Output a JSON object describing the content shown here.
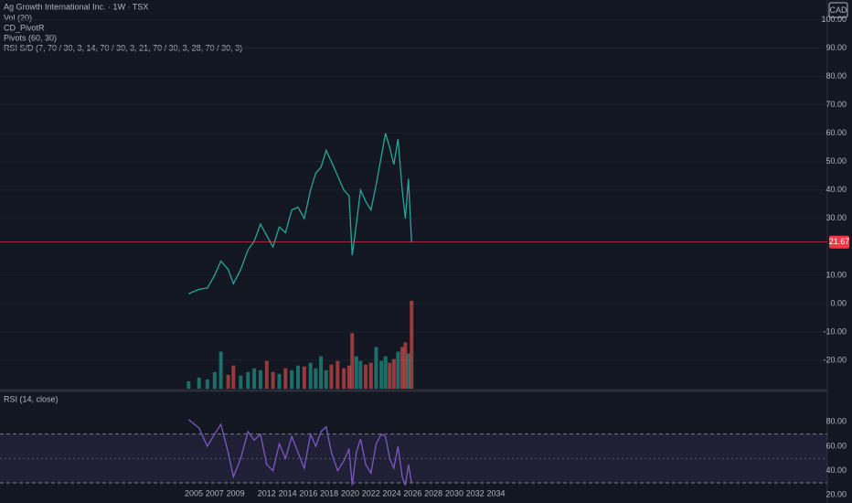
{
  "chart_data": [
    {
      "type": "line",
      "title": "Ag Growth International Inc. · 1W · TSX",
      "indicators": [
        "Vol (20)",
        "CD_PivotR",
        "Pivots (60, 30)",
        "RSI S/D (7, 70 / 30, 3, 14, 70 / 30, 3, 21, 70 / 30, 3, 28, 70 / 30, 3)"
      ],
      "currency": "CAD",
      "color": "#26a69a",
      "last_value": 21.67,
      "last_color": "#f23645",
      "x": [
        2004.5,
        2005.5,
        2006.3,
        2007,
        2007.6,
        2008.3,
        2008.8,
        2009.5,
        2010.2,
        2010.8,
        2011.4,
        2012,
        2012.6,
        2013.2,
        2013.8,
        2014.4,
        2015,
        2015.6,
        2016.2,
        2016.7,
        2017.2,
        2017.7,
        2018.2,
        2018.8,
        2019.4,
        2019.9,
        2020.2,
        2020.6,
        2021,
        2021.5,
        2022,
        2022.5,
        2023,
        2023.4,
        2023.8,
        2024.2,
        2024.6,
        2025,
        2025.3,
        2025.6,
        2025.9
      ],
      "values": [
        3.5,
        5,
        5.5,
        10,
        15,
        12,
        7,
        12,
        19,
        22,
        28,
        24,
        20,
        27,
        25,
        33,
        34,
        30,
        40,
        46,
        48,
        54,
        50,
        45,
        40,
        38,
        17,
        28,
        40,
        36,
        33,
        42,
        52,
        60,
        55,
        49,
        58,
        40,
        30,
        44,
        21.67
      ],
      "xlim": [
        1986.4,
        2065.8
      ],
      "ylim": [
        -30,
        107
      ],
      "yticks": [
        {
          "value": -20,
          "label": "-20.00"
        },
        {
          "value": -10,
          "label": "-10.00"
        },
        {
          "value": 0,
          "label": "0.00"
        },
        {
          "value": 10,
          "label": "10.00"
        },
        {
          "value": 30,
          "label": "30.00"
        },
        {
          "value": 40,
          "label": "40.00"
        },
        {
          "value": 50,
          "label": "50.00"
        },
        {
          "value": 60,
          "label": "60.00"
        },
        {
          "value": 70,
          "label": "70.00"
        },
        {
          "value": 80,
          "label": "80.00"
        },
        {
          "value": 90,
          "label": "90.00"
        },
        {
          "value": 100,
          "label": "100.00"
        }
      ],
      "grid": true
    },
    {
      "type": "bar",
      "x": [
        2004.5,
        2005.5,
        2006.3,
        2007,
        2007.6,
        2008.3,
        2008.8,
        2009.5,
        2010.2,
        2010.8,
        2011.4,
        2012,
        2012.6,
        2013.2,
        2013.8,
        2014.4,
        2015,
        2015.6,
        2016.2,
        2016.7,
        2017.2,
        2017.7,
        2018.2,
        2018.8,
        2019.4,
        2019.9,
        2020.2,
        2020.6,
        2021,
        2021.5,
        2022,
        2022.5,
        2023,
        2023.4,
        2023.8,
        2024.2,
        2024.6,
        2025,
        2025.3,
        2025.6,
        2025.9
      ],
      "values": [
        8,
        12,
        10,
        18,
        40,
        15,
        25,
        14,
        18,
        22,
        20,
        30,
        18,
        16,
        22,
        20,
        25,
        24,
        28,
        22,
        35,
        20,
        26,
        30,
        22,
        25,
        60,
        35,
        30,
        26,
        28,
        45,
        30,
        35,
        28,
        32,
        40,
        45,
        50,
        38,
        95
      ],
      "colors": [
        "#26a69a",
        "#26a69a",
        "#26a69a",
        "#26a69a",
        "#26a69a",
        "#ef5350",
        "#ef5350",
        "#26a69a",
        "#26a69a",
        "#26a69a",
        "#26a69a",
        "#ef5350",
        "#ef5350",
        "#26a69a",
        "#ef5350",
        "#26a69a",
        "#26a69a",
        "#ef5350",
        "#26a69a",
        "#26a69a",
        "#26a69a",
        "#26a69a",
        "#ef5350",
        "#ef5350",
        "#ef5350",
        "#ef5350",
        "#ef5350",
        "#26a69a",
        "#26a69a",
        "#ef5350",
        "#ef5350",
        "#26a69a",
        "#26a69a",
        "#26a69a",
        "#ef5350",
        "#ef5350",
        "#26a69a",
        "#ef5350",
        "#ef5350",
        "#26a69a",
        "#ef5350"
      ],
      "xlim": [
        1986.4,
        2065.8
      ],
      "ylim": [
        0,
        420
      ]
    },
    {
      "type": "line",
      "title": "RSI (14, close)",
      "color": "#7e57c2",
      "band": [
        30,
        70
      ],
      "middle": 50,
      "x": [
        2004.5,
        2005.5,
        2006.3,
        2007,
        2007.6,
        2008.3,
        2008.8,
        2009.5,
        2010.2,
        2010.8,
        2011.4,
        2012,
        2012.6,
        2013.2,
        2013.8,
        2014.4,
        2015,
        2015.6,
        2016.2,
        2016.7,
        2017.2,
        2017.7,
        2018.2,
        2018.8,
        2019.4,
        2019.9,
        2020.2,
        2020.6,
        2021,
        2021.5,
        2022,
        2022.5,
        2023,
        2023.4,
        2023.8,
        2024.2,
        2024.6,
        2025,
        2025.3,
        2025.6,
        2025.9
      ],
      "values": [
        82,
        75,
        60,
        70,
        78,
        55,
        35,
        50,
        72,
        65,
        70,
        45,
        40,
        62,
        50,
        68,
        55,
        42,
        70,
        60,
        72,
        76,
        55,
        40,
        48,
        58,
        28,
        55,
        66,
        45,
        38,
        62,
        70,
        68,
        50,
        42,
        60,
        35,
        28,
        45,
        30
      ],
      "xlim": [
        1986.4,
        2065.8
      ],
      "ylim": [
        15,
        105
      ],
      "yticks": [
        {
          "value": 20,
          "label": "20.00"
        },
        {
          "value": 40,
          "label": "40.00"
        },
        {
          "value": 60,
          "label": "60.00"
        },
        {
          "value": 80,
          "label": "80.00"
        }
      ],
      "xticks": [
        2005,
        2007,
        2009,
        2012,
        2014,
        2016,
        2018,
        2020,
        2022,
        2024,
        2026,
        2028,
        2030,
        2032,
        2034
      ]
    }
  ]
}
